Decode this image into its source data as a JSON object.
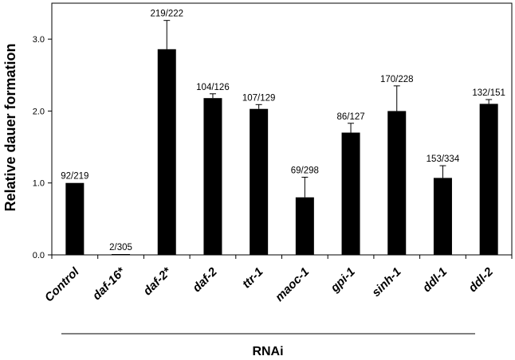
{
  "chart_data": {
    "type": "bar",
    "title": "",
    "xlabel": "",
    "ylabel": "Relative dauer formation",
    "group_label": "RNAi",
    "ylim": [
      0,
      3.5
    ],
    "yticks": [
      "0.0",
      "1.0",
      "2.0",
      "3.0"
    ],
    "grid": false,
    "legend": "none",
    "bar_color": "#000000",
    "categories": [
      "Control",
      "daf-16*",
      "daf-2*",
      "daf-2",
      "ttr-1",
      "maoc-1",
      "gpi-1",
      "sinh-1",
      "ddl-1",
      "ddl-2"
    ],
    "values": [
      1.0,
      0.01,
      2.86,
      2.18,
      2.03,
      0.8,
      1.7,
      2.0,
      1.07,
      2.1
    ],
    "error": [
      0.0,
      0.0,
      0.4,
      0.06,
      0.06,
      0.28,
      0.13,
      0.35,
      0.17,
      0.06
    ],
    "data_labels": [
      "92/219",
      "2/305",
      "219/222",
      "104/126",
      "107/129",
      "69/298",
      "86/127",
      "170/228",
      "153/334",
      "132/151"
    ]
  }
}
